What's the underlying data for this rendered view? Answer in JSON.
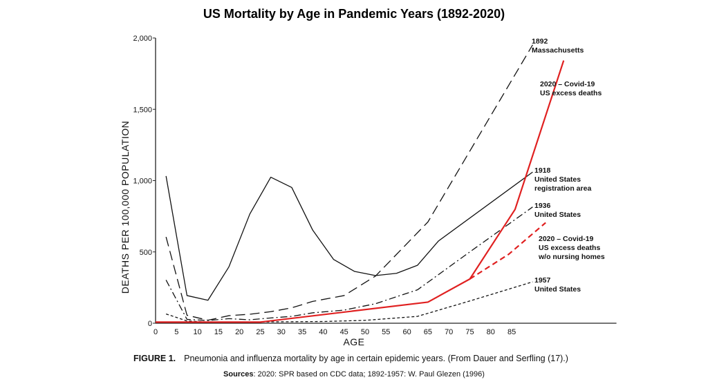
{
  "chart_data": {
    "type": "line",
    "title": "US Mortality by Age in Pandemic Years (1892-2020)",
    "xlabel": "AGE",
    "ylabel": "DEATHS  PER  100,000 POPULATION",
    "xlim": [
      0,
      110
    ],
    "ylim": [
      0,
      2000
    ],
    "x_ticks": [
      0,
      5,
      10,
      15,
      20,
      25,
      30,
      35,
      40,
      45,
      50,
      55,
      60,
      65,
      70,
      75,
      80,
      85
    ],
    "y_ticks": [
      0,
      500,
      1000,
      1500,
      2000
    ],
    "y_tick_labels": [
      "0",
      "500",
      "1,000",
      "1,500",
      "2,000"
    ],
    "grid": false,
    "series": [
      {
        "name": "1918 United States registration area",
        "label": [
          "1918",
          "United States",
          "registration area"
        ],
        "color": "#111111",
        "style": "solid",
        "x": [
          2.5,
          7.5,
          12.5,
          17.5,
          22.5,
          27.5,
          32.5,
          37.5,
          42.5,
          47.5,
          52.5,
          57.5,
          62.5,
          67.5,
          90
        ],
        "y": [
          1032,
          194,
          161,
          395,
          766,
          1024,
          952,
          653,
          447,
          363,
          334,
          350,
          406,
          576,
          1060
        ]
      },
      {
        "name": "1892 Massachusetts",
        "label": [
          "1892",
          "Massachusetts"
        ],
        "color": "#111111",
        "style": "longdash",
        "x": [
          2.5,
          7.5,
          12.5,
          17.5,
          22.5,
          27.5,
          32.5,
          37.5,
          45,
          52.5,
          65,
          90
        ],
        "y": [
          605,
          56,
          21,
          53,
          63,
          81,
          108,
          153,
          194,
          331,
          710,
          1952
        ]
      },
      {
        "name": "1936 United States",
        "label": [
          "1936",
          "United States"
        ],
        "color": "#111111",
        "style": "dashdot",
        "x": [
          2.5,
          7.5,
          12.5,
          17.5,
          22.5,
          27.5,
          32.5,
          37.5,
          45,
          52.5,
          62.5,
          75,
          90
        ],
        "y": [
          303,
          27,
          19,
          32,
          24,
          37,
          48,
          73,
          92,
          137,
          234,
          500,
          815
        ]
      },
      {
        "name": "1957 United States",
        "label": [
          "1957",
          "United States"
        ],
        "color": "#111111",
        "style": "shortdash",
        "x": [
          2.5,
          7.5,
          12.5,
          20,
          30,
          40,
          50,
          62.5,
          75,
          90
        ],
        "y": [
          65,
          16,
          8,
          8,
          10,
          12,
          20,
          48,
          156,
          290
        ]
      },
      {
        "name": "2020 – Covid-19 US excess deaths",
        "label": [
          "2020 – Covid-19",
          "US excess deaths"
        ],
        "color": "#e02020",
        "style": "solid",
        "x": [
          0,
          25,
          65,
          75,
          85.8,
          97.4
        ],
        "y": [
          8,
          8,
          148,
          310,
          798,
          1842
        ]
      },
      {
        "name": "2020 – Covid-19 US excess deaths w/o nursing homes",
        "label": [
          "2020 – Covid-19",
          "US excess deaths",
          "w/o nursing homes"
        ],
        "color": "#e02020",
        "style": "reddash",
        "x": [
          75,
          84.3,
          93.1
        ],
        "y": [
          310,
          484,
          705
        ]
      }
    ],
    "caption_bold": "FIGURE 1.",
    "caption": "Pneumonia and influenza mortality by age in certain epidemic years. (From Dauer and Serfling (17).)",
    "sources_bold": "Sources",
    "sources": ": 2020: SPR based on CDC data; 1892-1957: W. Paul Glezen (1996)"
  }
}
